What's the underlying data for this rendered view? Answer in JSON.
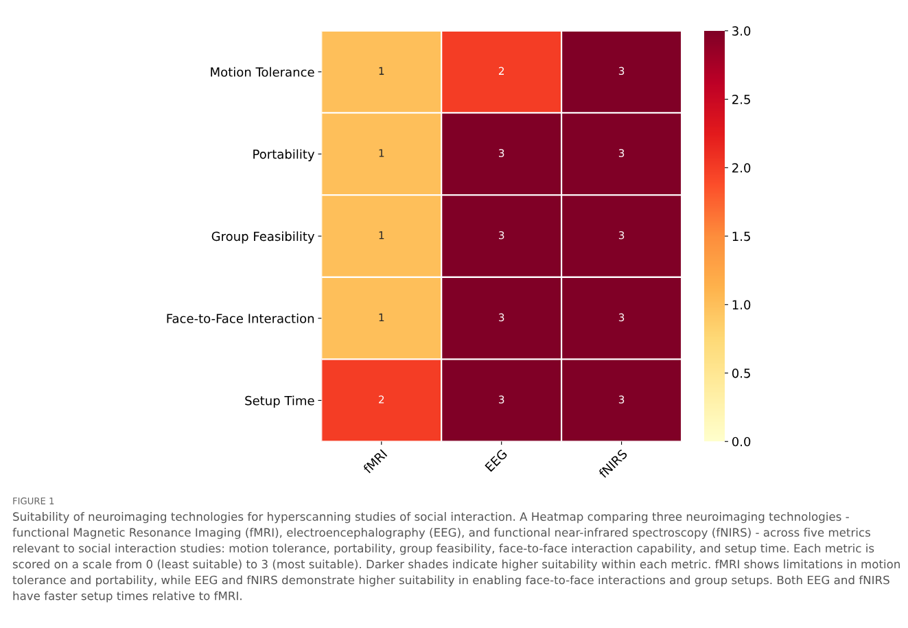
{
  "chart_data": {
    "type": "heatmap",
    "categories": [
      "fMRI",
      "EEG",
      "fNIRS"
    ],
    "y_categories": [
      "Motion Tolerance",
      "Portability",
      "Group Feasibility",
      "Face-to-Face Interaction",
      "Setup Time"
    ],
    "cells": [
      [
        1,
        2,
        3
      ],
      [
        1,
        3,
        3
      ],
      [
        1,
        3,
        3
      ],
      [
        1,
        3,
        3
      ],
      [
        2,
        3,
        3
      ]
    ],
    "data_labels": true,
    "clim": [
      0,
      3
    ],
    "cticks": [
      {
        "value": 0,
        "label": "0.0"
      },
      {
        "value": 0.5,
        "label": "0.5"
      },
      {
        "value": 1,
        "label": "1.0"
      },
      {
        "value": 1.5,
        "label": "1.5"
      },
      {
        "value": 2,
        "label": "2.0"
      },
      {
        "value": 2.5,
        "label": "2.5"
      },
      {
        "value": 3,
        "label": "3.0"
      }
    ],
    "annotations": [
      "FIGURE 1",
      "Suitability of neuroimaging technologies for hyperscanning studies of social interaction. A Heatmap comparing three neuroimaging technologies - functional Magnetic Resonance Imaging (fMRI), electroencephalography (EEG), and functional near-infrared spectroscopy (fNIRS) - across five metrics relevant to social interaction studies: motion tolerance, portability, group feasibility, face-to-face interaction capability, and setup time. Each metric is scored on a scale from 0 (least suitable) to 3 (most suitable). Darker shades indicate higher suitability within each metric. fMRI shows limitations in motion tolerance and portability, while EEG and fNIRS demonstrate higher suitability in enabling face-to-face interactions and group setups. Both EEG and fNIRS have faster setup times relative to fMRI."
    ]
  }
}
